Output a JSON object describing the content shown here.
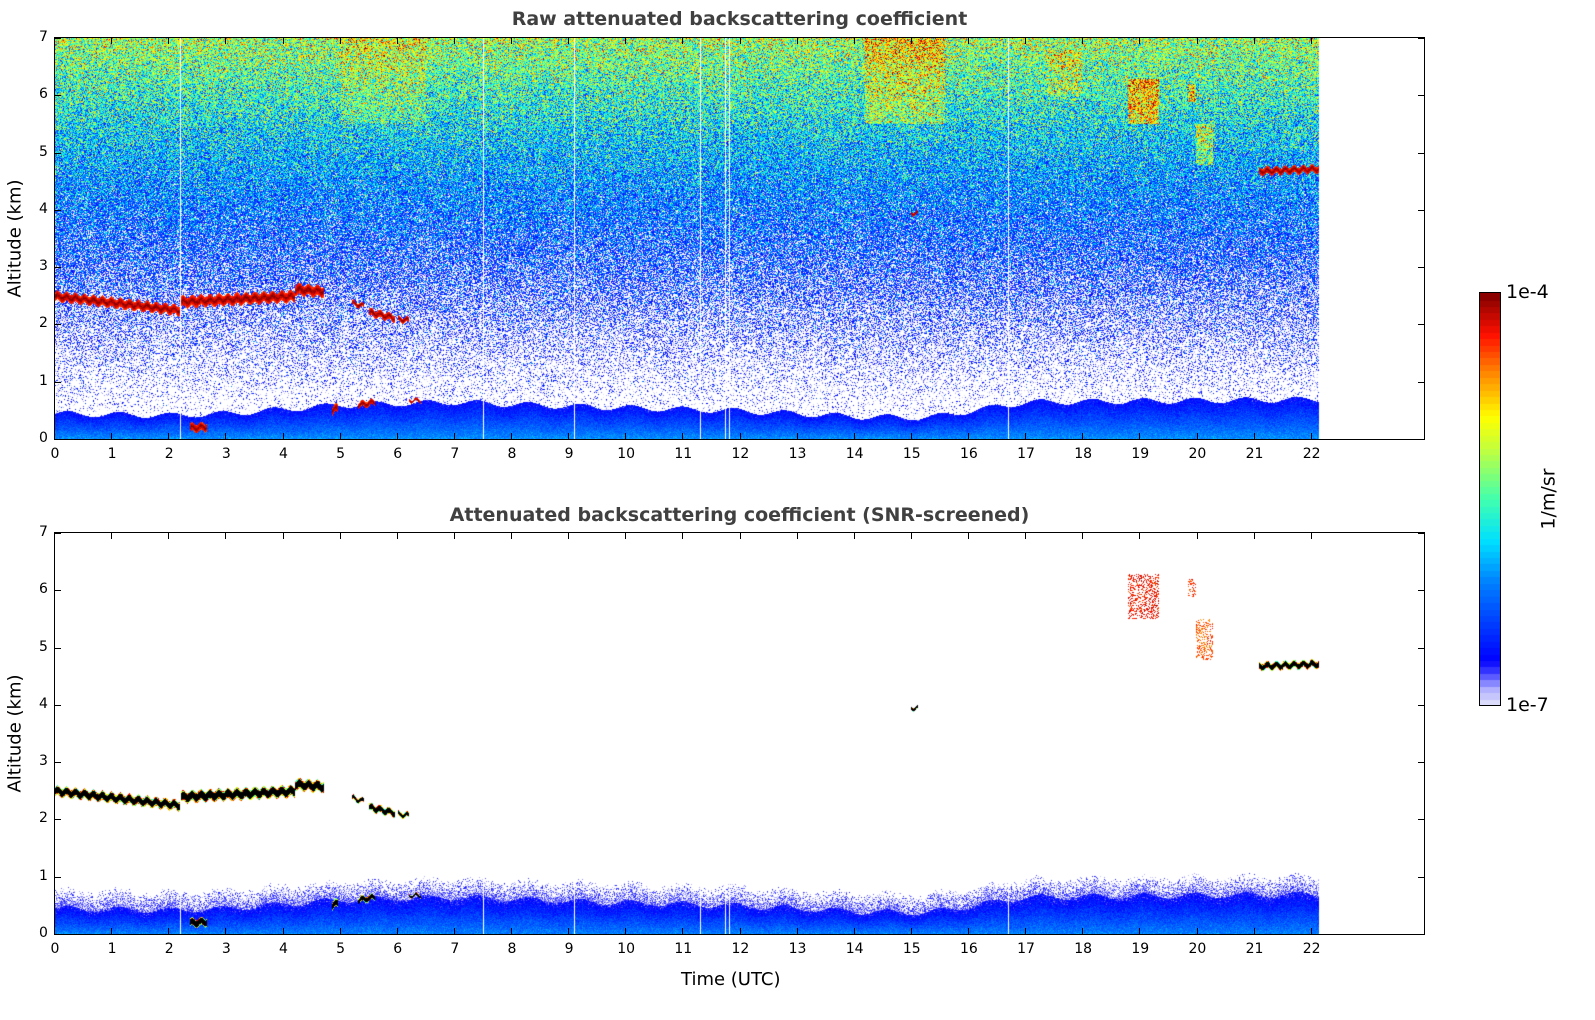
{
  "chart_data": [
    {
      "type": "heatmap",
      "title": "Raw attenuated backscattering coefficient",
      "xlabel": "",
      "ylabel": "Altitude (km)",
      "xlim": [
        0,
        24
      ],
      "ylim": [
        0,
        7
      ],
      "xticks": [
        "0",
        "1",
        "2",
        "3",
        "4",
        "5",
        "6",
        "7",
        "8",
        "9",
        "10",
        "11",
        "12",
        "13",
        "14",
        "15",
        "16",
        "17",
        "18",
        "19",
        "20",
        "21",
        "22"
      ],
      "yticks": [
        "0",
        "1",
        "2",
        "3",
        "4",
        "5",
        "6",
        "7"
      ],
      "mode": "raw"
    },
    {
      "type": "heatmap",
      "title": "Attenuated backscattering coefficient (SNR-screened)",
      "xlabel": "Time (UTC)",
      "ylabel": "Altitude (km)",
      "xlim": [
        0,
        24
      ],
      "ylim": [
        0,
        7
      ],
      "xticks": [
        "0",
        "1",
        "2",
        "3",
        "4",
        "5",
        "6",
        "7",
        "8",
        "9",
        "10",
        "11",
        "12",
        "13",
        "14",
        "15",
        "16",
        "17",
        "18",
        "19",
        "20",
        "21",
        "22"
      ],
      "yticks": [
        "0",
        "1",
        "2",
        "3",
        "4",
        "5",
        "6",
        "7"
      ],
      "mode": "screened"
    }
  ],
  "data_extent_hours": 22.15,
  "data_gaps_hours": [
    2.2,
    7.5,
    9.1,
    11.3,
    11.75,
    11.82,
    16.7
  ],
  "boundary_layer_km": [
    [
      0,
      0.45
    ],
    [
      2,
      0.42
    ],
    [
      3,
      0.45
    ],
    [
      5,
      0.6
    ],
    [
      7,
      0.65
    ],
    [
      9,
      0.58
    ],
    [
      12,
      0.5
    ],
    [
      14,
      0.4
    ],
    [
      15.3,
      0.38
    ],
    [
      17,
      0.65
    ],
    [
      22.2,
      0.7
    ]
  ],
  "cloud_layers": [
    {
      "t0": 0,
      "t1": 2.2,
      "z0": 2.5,
      "z1": 2.25,
      "depth": 0.16
    },
    {
      "t0": 2.2,
      "t1": 4.2,
      "z0": 2.4,
      "z1": 2.5,
      "depth": 0.18
    },
    {
      "t0": 4.2,
      "t1": 4.7,
      "z0": 2.62,
      "z1": 2.58,
      "depth": 0.18
    },
    {
      "t0": 5.2,
      "t1": 5.4,
      "z0": 2.38,
      "z1": 2.33,
      "depth": 0.08
    },
    {
      "t0": 5.5,
      "t1": 5.95,
      "z0": 2.22,
      "z1": 2.12,
      "depth": 0.12
    },
    {
      "t0": 6.0,
      "t1": 6.2,
      "z0": 2.1,
      "z1": 2.08,
      "depth": 0.08
    },
    {
      "t0": 21.1,
      "t1": 22.15,
      "z0": 4.68,
      "z1": 4.72,
      "depth": 0.12
    },
    {
      "t0": 15.0,
      "t1": 15.12,
      "z0": 3.95,
      "z1": 3.95,
      "depth": 0.06
    },
    {
      "t0": 2.35,
      "t1": 2.65,
      "z0": 0.2,
      "z1": 0.22,
      "depth": 0.14
    },
    {
      "t0": 4.85,
      "t1": 4.95,
      "z0": 0.5,
      "z1": 0.55,
      "depth": 0.14
    },
    {
      "t0": 5.3,
      "t1": 5.6,
      "z0": 0.6,
      "z1": 0.65,
      "depth": 0.1
    },
    {
      "t0": 6.2,
      "t1": 6.4,
      "z0": 0.68,
      "z1": 0.68,
      "depth": 0.05
    }
  ],
  "enhancements": [
    {
      "t0": 14.2,
      "t1": 15.6,
      "z0": 5.5,
      "z1": 7,
      "add": 0.15
    },
    {
      "t0": 18.8,
      "t1": 19.35,
      "z0": 5.5,
      "z1": 6.3,
      "add": 0.28
    },
    {
      "t0": 19.85,
      "t1": 20.0,
      "z0": 5.9,
      "z1": 6.2,
      "add": 0.25
    },
    {
      "t0": 20.0,
      "t1": 20.3,
      "z0": 4.8,
      "z1": 5.5,
      "add": 0.22
    },
    {
      "t0": 17.4,
      "t1": 18.0,
      "z0": 6.0,
      "z1": 6.8,
      "add": 0.1
    },
    {
      "t0": 5.0,
      "t1": 6.5,
      "z0": 5.5,
      "z1": 7,
      "add": 0.08
    }
  ],
  "colorbar": {
    "max_label": "1e-4",
    "min_label": "1e-7",
    "unit": "1/m/sr"
  },
  "colors": {
    "title": "#404040"
  }
}
